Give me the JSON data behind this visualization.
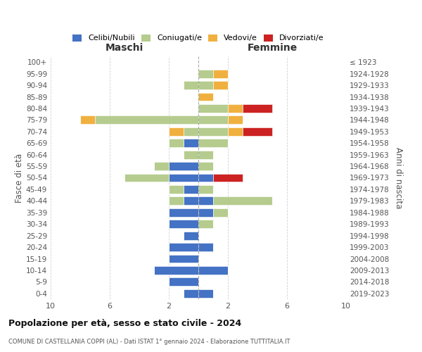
{
  "age_groups": [
    "0-4",
    "5-9",
    "10-14",
    "15-19",
    "20-24",
    "25-29",
    "30-34",
    "35-39",
    "40-44",
    "45-49",
    "50-54",
    "55-59",
    "60-64",
    "65-69",
    "70-74",
    "75-79",
    "80-84",
    "85-89",
    "90-94",
    "95-99",
    "100+"
  ],
  "birth_years": [
    "2019-2023",
    "2014-2018",
    "2009-2013",
    "2004-2008",
    "1999-2003",
    "1994-1998",
    "1989-1993",
    "1984-1988",
    "1979-1983",
    "1974-1978",
    "1969-1973",
    "1964-1968",
    "1959-1963",
    "1954-1958",
    "1949-1953",
    "1944-1948",
    "1939-1943",
    "1934-1938",
    "1929-1933",
    "1924-1928",
    "≤ 1923"
  ],
  "maschi": {
    "celibi": [
      1,
      2,
      3,
      2,
      2,
      1,
      2,
      2,
      1,
      1,
      2,
      2,
      0,
      1,
      0,
      0,
      0,
      0,
      0,
      0,
      0
    ],
    "coniugati": [
      0,
      0,
      0,
      0,
      0,
      0,
      0,
      0,
      1,
      1,
      3,
      1,
      1,
      1,
      1,
      7,
      0,
      0,
      1,
      0,
      0
    ],
    "vedovi": [
      0,
      0,
      0,
      0,
      0,
      0,
      0,
      0,
      0,
      0,
      0,
      0,
      0,
      0,
      1,
      1,
      0,
      0,
      0,
      0,
      0
    ],
    "divorziati": [
      0,
      0,
      0,
      0,
      0,
      0,
      0,
      0,
      0,
      0,
      0,
      0,
      0,
      0,
      0,
      0,
      0,
      0,
      0,
      0,
      0
    ]
  },
  "femmine": {
    "nubili": [
      1,
      0,
      2,
      0,
      1,
      0,
      0,
      1,
      1,
      0,
      1,
      0,
      0,
      0,
      0,
      0,
      0,
      0,
      0,
      0,
      0
    ],
    "coniugate": [
      0,
      0,
      0,
      0,
      0,
      0,
      1,
      1,
      4,
      1,
      0,
      1,
      1,
      2,
      2,
      2,
      2,
      0,
      1,
      1,
      0
    ],
    "vedove": [
      0,
      0,
      0,
      0,
      0,
      0,
      0,
      0,
      0,
      0,
      0,
      0,
      0,
      0,
      1,
      1,
      1,
      1,
      1,
      1,
      0
    ],
    "divorziate": [
      0,
      0,
      0,
      0,
      0,
      0,
      0,
      0,
      0,
      0,
      2,
      0,
      0,
      0,
      2,
      0,
      2,
      0,
      0,
      0,
      0
    ]
  },
  "colors": {
    "celibi": "#4472c4",
    "coniugati": "#b5cc8e",
    "vedovi": "#f0b040",
    "divorziati": "#cc2222"
  },
  "xlim": 10,
  "title": "Popolazione per età, sesso e stato civile - 2024",
  "subtitle": "COMUNE DI CASTELLANIA COPPI (AL) - Dati ISTAT 1° gennaio 2024 - Elaborazione TUTTITALIA.IT",
  "ylabel_left": "Fasce di età",
  "ylabel_right": "Anni di nascita",
  "xlabel_left": "Maschi",
  "xlabel_right": "Femmine",
  "bg_color": "#ffffff",
  "grid_color": "#cccccc"
}
